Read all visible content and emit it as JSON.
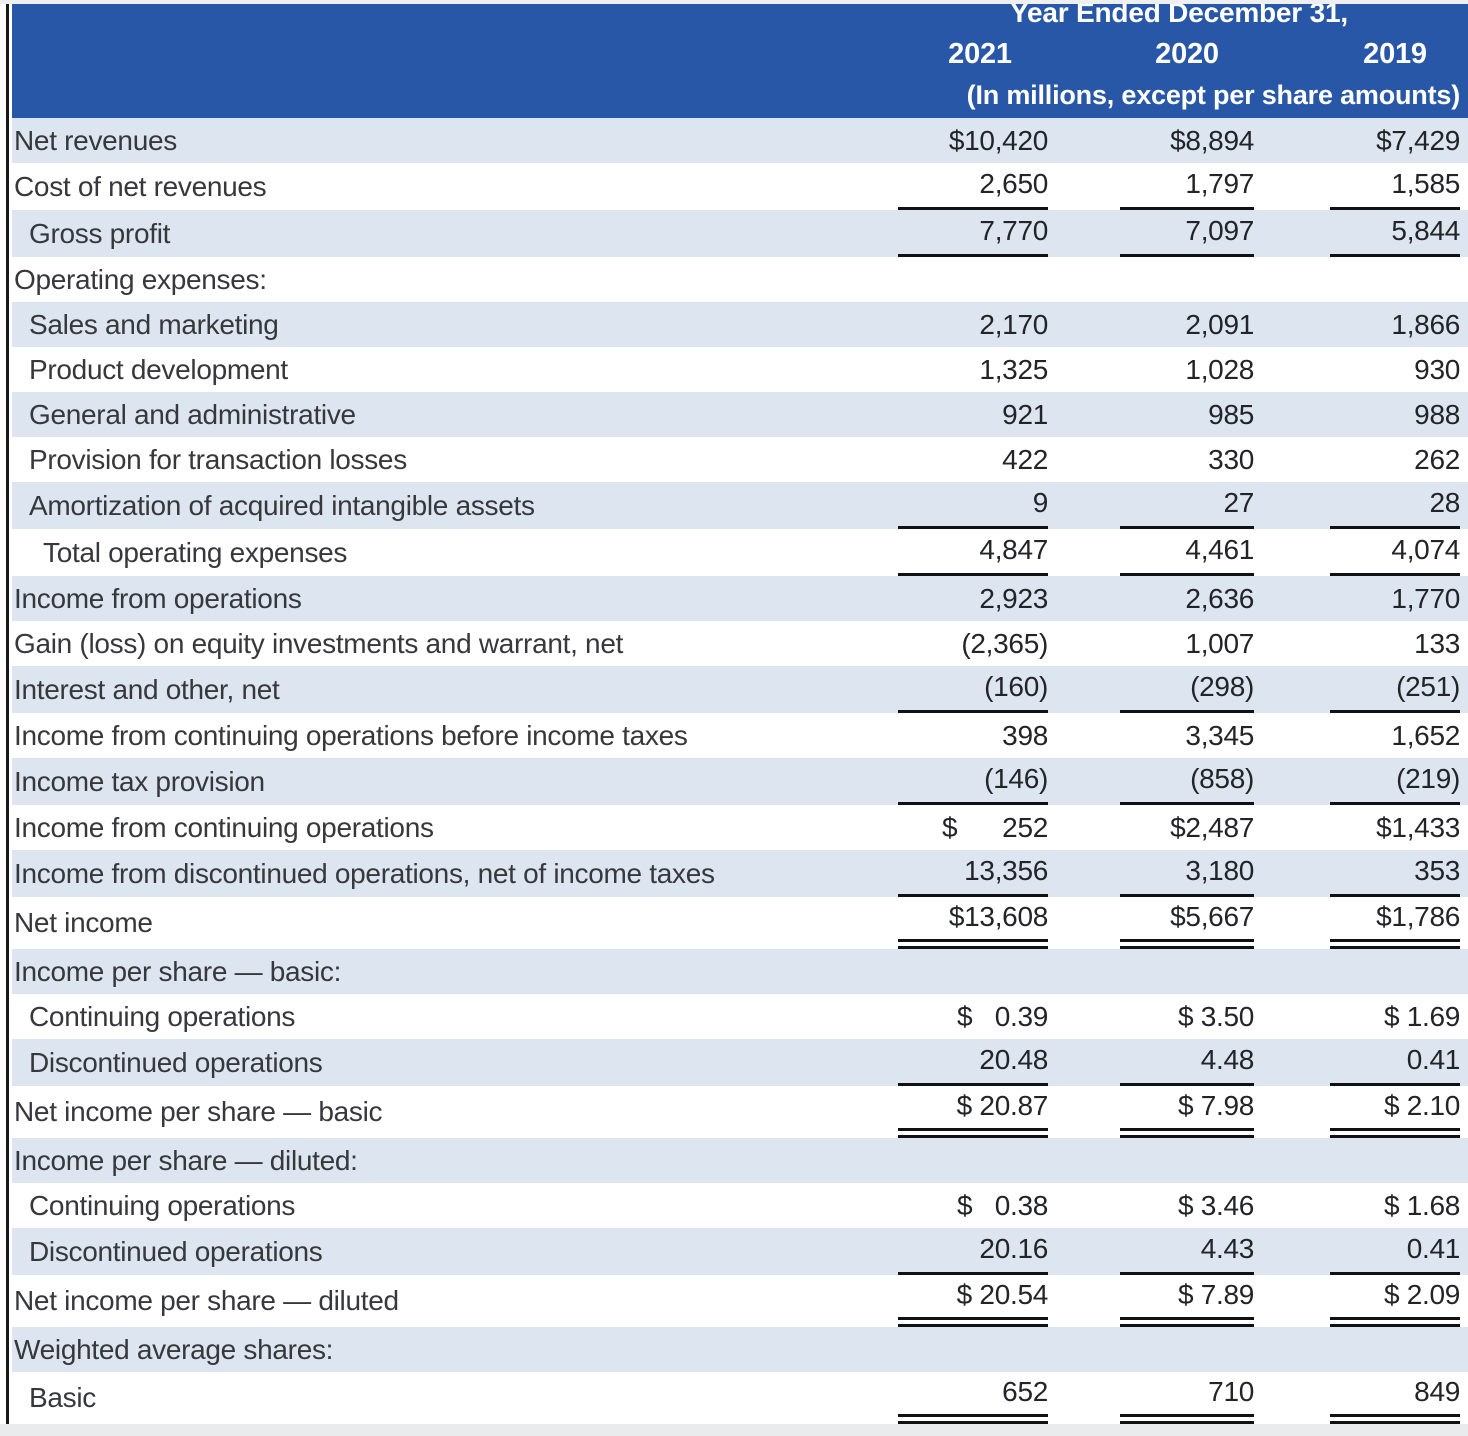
{
  "header": {
    "title": "Year Ended December 31,",
    "years": [
      "2021",
      "2020",
      "2019"
    ],
    "subtitle": "(In millions, except per share amounts)"
  },
  "colors": {
    "header_bg": "#2857A8",
    "row_alt_bg": "#DCE5F0",
    "rule_color": "#101113"
  },
  "rows": [
    {
      "label": "Net revenues",
      "y2021": "$10,420",
      "y2020": "$8,894",
      "y2019": "$7,429"
    },
    {
      "label": "Cost of net revenues",
      "y2021": "2,650",
      "y2020": "1,797",
      "y2019": "1,585"
    },
    {
      "label": "Gross profit",
      "y2021": "7,770",
      "y2020": "7,097",
      "y2019": "5,844"
    },
    {
      "label": "Operating expenses:",
      "y2021": "",
      "y2020": "",
      "y2019": ""
    },
    {
      "label": "Sales and marketing",
      "y2021": "2,170",
      "y2020": "2,091",
      "y2019": "1,866"
    },
    {
      "label": "Product development",
      "y2021": "1,325",
      "y2020": "1,028",
      "y2019": "930"
    },
    {
      "label": "General and administrative",
      "y2021": "921",
      "y2020": "985",
      "y2019": "988"
    },
    {
      "label": "Provision for transaction losses",
      "y2021": "422",
      "y2020": "330",
      "y2019": "262"
    },
    {
      "label": "Amortization of acquired intangible assets",
      "y2021": "9",
      "y2020": "27",
      "y2019": "28"
    },
    {
      "label": "Total operating expenses",
      "y2021": "4,847",
      "y2020": "4,461",
      "y2019": "4,074"
    },
    {
      "label": "Income from operations",
      "y2021": "2,923",
      "y2020": "2,636",
      "y2019": "1,770"
    },
    {
      "label": "Gain (loss) on equity investments and warrant, net",
      "y2021": "(2,365)",
      "y2020": "1,007",
      "y2019": "133"
    },
    {
      "label": "Interest and other, net",
      "y2021": "(160)",
      "y2020": "(298)",
      "y2019": "(251)"
    },
    {
      "label": "Income from continuing operations before income taxes",
      "y2021": "398",
      "y2020": "3,345",
      "y2019": "1,652"
    },
    {
      "label": "Income tax provision",
      "y2021": "(146)",
      "y2020": "(858)",
      "y2019": "(219)"
    },
    {
      "label": "Income from continuing operations",
      "y2021": "$      252",
      "y2020": "$2,487",
      "y2019": "$1,433"
    },
    {
      "label": "Income from discontinued operations, net of income taxes",
      "y2021": "13,356",
      "y2020": "3,180",
      "y2019": "353"
    },
    {
      "label": "Net income",
      "y2021": "$13,608",
      "y2020": "$5,667",
      "y2019": "$1,786"
    },
    {
      "label": "Income per share — basic:",
      "y2021": "",
      "y2020": "",
      "y2019": ""
    },
    {
      "label": "Continuing operations",
      "y2021": "$   0.39",
      "y2020": "$ 3.50",
      "y2019": "$ 1.69"
    },
    {
      "label": "Discontinued operations",
      "y2021": "20.48",
      "y2020": "4.48",
      "y2019": "0.41"
    },
    {
      "label": "Net income per share — basic",
      "y2021": "$ 20.87",
      "y2020": "$ 7.98",
      "y2019": "$ 2.10"
    },
    {
      "label": "Income per share — diluted:",
      "y2021": "",
      "y2020": "",
      "y2019": ""
    },
    {
      "label": "Continuing operations",
      "y2021": "$   0.38",
      "y2020": "$ 3.46",
      "y2019": "$ 1.68"
    },
    {
      "label": "Discontinued operations",
      "y2021": "20.16",
      "y2020": "4.43",
      "y2019": "0.41"
    },
    {
      "label": "Net income per share — diluted",
      "y2021": "$ 20.54",
      "y2020": "$ 7.89",
      "y2019": "$ 2.09"
    },
    {
      "label": "Weighted average shares:",
      "y2021": "",
      "y2020": "",
      "y2019": ""
    },
    {
      "label": "Basic",
      "y2021": "652",
      "y2020": "710",
      "y2019": "849"
    }
  ]
}
